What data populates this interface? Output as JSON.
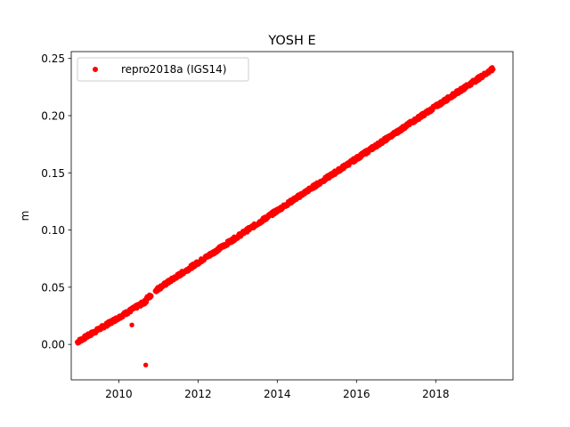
{
  "chart_data": {
    "type": "scatter",
    "title": "YOSH E",
    "xlabel": "",
    "ylabel": "m",
    "xlim": [
      2008.8,
      2019.95
    ],
    "ylim": [
      -0.031,
      0.256
    ],
    "xticks": [
      2010,
      2012,
      2014,
      2016,
      2018
    ],
    "yticks": [
      0.0,
      0.05,
      0.1,
      0.15,
      0.2,
      0.25
    ],
    "ytick_labels": [
      "0.00",
      "0.05",
      "0.10",
      "0.15",
      "0.20",
      "0.25"
    ],
    "grid": false,
    "legend_position": "top-left",
    "series": [
      {
        "name": "repro2018a (IGS14)",
        "color": "#ff0000",
        "marker": "circle",
        "segments": [
          {
            "x_start": 2008.95,
            "x_end": 2010.7,
            "y_start": 0.002,
            "y_end": 0.038
          },
          {
            "x_start": 2010.7,
            "x_end": 2010.82,
            "y_start": 0.04,
            "y_end": 0.043
          },
          {
            "x_start": 2010.92,
            "x_end": 2019.45,
            "y_start": 0.047,
            "y_end": 0.241
          }
        ],
        "outliers": [
          {
            "x": 2010.33,
            "y": 0.017
          },
          {
            "x": 2010.68,
            "y": -0.018
          }
        ]
      }
    ]
  }
}
